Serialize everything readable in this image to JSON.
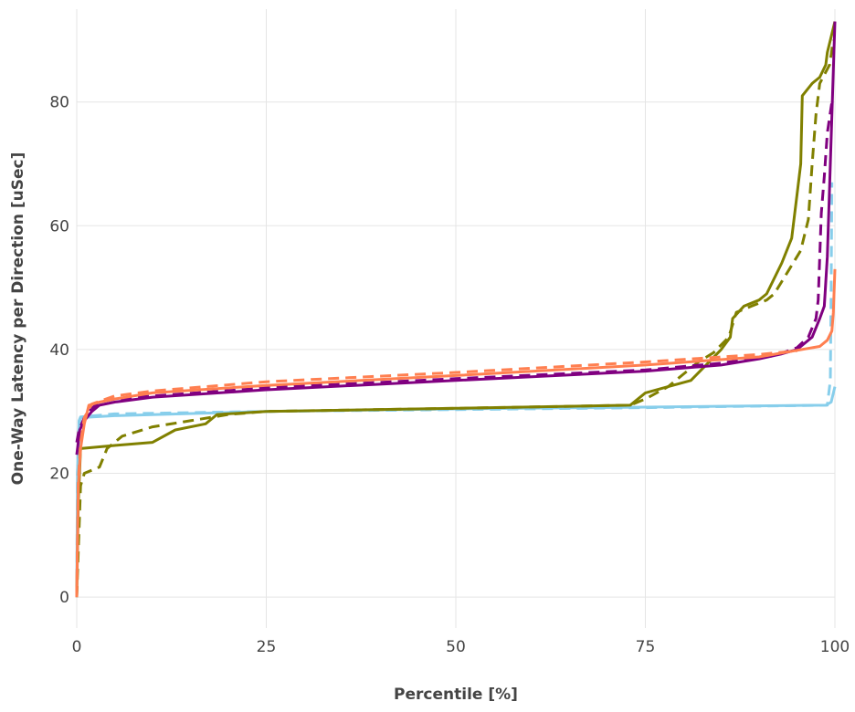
{
  "chart_data": {
    "type": "line",
    "title": "",
    "xlabel": "Percentile [%]",
    "ylabel": "One-Way Latency per Direction [uSec]",
    "xlim": [
      0,
      100
    ],
    "ylim": [
      -5,
      95
    ],
    "xticks": [
      0,
      25,
      50,
      75,
      100
    ],
    "yticks": [
      0,
      20,
      40,
      60,
      80
    ],
    "grid": true,
    "legend": "none",
    "series": [
      {
        "color": "#87ceeb",
        "dash": "solid",
        "points": [
          [
            0,
            0
          ],
          [
            0.1,
            20
          ],
          [
            0.3,
            28
          ],
          [
            0.5,
            29
          ],
          [
            5,
            29.3
          ],
          [
            25,
            30
          ],
          [
            50,
            30.4
          ],
          [
            75,
            30.7
          ],
          [
            98.8,
            31
          ],
          [
            99.5,
            31.5
          ],
          [
            100,
            34
          ]
        ]
      },
      {
        "color": "#87ceeb",
        "dash": "dashed",
        "points": [
          [
            0,
            0
          ],
          [
            0.1,
            20
          ],
          [
            0.3,
            28.5
          ],
          [
            0.5,
            29.1
          ],
          [
            5,
            29.6
          ],
          [
            25,
            30
          ],
          [
            50,
            30.3
          ],
          [
            75,
            30.6
          ],
          [
            99,
            31
          ],
          [
            99.4,
            35
          ],
          [
            99.5,
            50
          ],
          [
            99.6,
            67
          ]
        ]
      },
      {
        "color": "#808000",
        "dash": "solid",
        "points": [
          [
            0,
            0
          ],
          [
            0.2,
            15
          ],
          [
            0.5,
            24
          ],
          [
            5,
            24.5
          ],
          [
            10,
            25
          ],
          [
            13,
            27
          ],
          [
            17,
            28
          ],
          [
            18.5,
            29.5
          ],
          [
            25,
            30
          ],
          [
            50,
            30.5
          ],
          [
            73,
            31
          ],
          [
            75,
            33
          ],
          [
            78,
            34
          ],
          [
            81,
            35
          ],
          [
            83,
            37.5
          ],
          [
            85,
            40
          ],
          [
            86.2,
            42
          ],
          [
            86.5,
            45
          ],
          [
            88,
            47
          ],
          [
            90,
            48
          ],
          [
            91,
            49
          ],
          [
            93,
            54
          ],
          [
            94.3,
            58
          ],
          [
            95,
            65
          ],
          [
            95.5,
            70
          ],
          [
            95.7,
            81
          ],
          [
            97,
            83
          ],
          [
            98,
            84
          ],
          [
            98.8,
            86
          ],
          [
            99,
            88
          ],
          [
            100,
            93
          ]
        ]
      },
      {
        "color": "#808000",
        "dash": "dashed",
        "points": [
          [
            0,
            0
          ],
          [
            0.5,
            18
          ],
          [
            1,
            20
          ],
          [
            3,
            21
          ],
          [
            4,
            24
          ],
          [
            6,
            26
          ],
          [
            10,
            27.5
          ],
          [
            15,
            28.5
          ],
          [
            20,
            29.5
          ],
          [
            25,
            30
          ],
          [
            50,
            30.5
          ],
          [
            73,
            31
          ],
          [
            75,
            32
          ],
          [
            78,
            34
          ],
          [
            80,
            36
          ],
          [
            82,
            38
          ],
          [
            84,
            39.5
          ],
          [
            86,
            42
          ],
          [
            87,
            46
          ],
          [
            89,
            47
          ],
          [
            91,
            48
          ],
          [
            92,
            49
          ],
          [
            94,
            53
          ],
          [
            95.5,
            56
          ],
          [
            96.5,
            61
          ],
          [
            97,
            70
          ],
          [
            97.5,
            78
          ],
          [
            98,
            83
          ],
          [
            99.3,
            86
          ],
          [
            99.8,
            90
          ]
        ]
      },
      {
        "color": "#800080",
        "dash": "solid",
        "points": [
          [
            0,
            23
          ],
          [
            0.2,
            25
          ],
          [
            0.4,
            27
          ],
          [
            1,
            28.5
          ],
          [
            2,
            30
          ],
          [
            3,
            31
          ],
          [
            5,
            31.5
          ],
          [
            10,
            32.3
          ],
          [
            25,
            33.5
          ],
          [
            50,
            35
          ],
          [
            75,
            36.5
          ],
          [
            85,
            37.5
          ],
          [
            90,
            38.5
          ],
          [
            93,
            39.3
          ],
          [
            95,
            40
          ],
          [
            97,
            42
          ],
          [
            98,
            45
          ],
          [
            98.6,
            47
          ],
          [
            99,
            55
          ],
          [
            99.4,
            70
          ],
          [
            100,
            93
          ]
        ]
      },
      {
        "color": "#800080",
        "dash": "dashed",
        "points": [
          [
            0,
            25
          ],
          [
            0.3,
            27
          ],
          [
            1,
            29
          ],
          [
            2,
            30.5
          ],
          [
            3,
            31.5
          ],
          [
            5,
            32
          ],
          [
            10,
            32.5
          ],
          [
            25,
            33.8
          ],
          [
            50,
            35.3
          ],
          [
            75,
            36.7
          ],
          [
            85,
            37.8
          ],
          [
            92,
            39
          ],
          [
            95,
            40.3
          ],
          [
            96.5,
            42
          ],
          [
            97.5,
            45
          ],
          [
            97.8,
            48
          ],
          [
            98,
            55
          ],
          [
            98.2,
            62
          ],
          [
            98.6,
            68
          ],
          [
            99,
            75
          ],
          [
            99.6,
            80
          ]
        ]
      },
      {
        "color": "#ff7f50",
        "dash": "solid",
        "points": [
          [
            0,
            0
          ],
          [
            0.2,
            18
          ],
          [
            0.5,
            24
          ],
          [
            1,
            28
          ],
          [
            1.6,
            31
          ],
          [
            3,
            31.5
          ],
          [
            5,
            32
          ],
          [
            10,
            33
          ],
          [
            25,
            34.2
          ],
          [
            50,
            35.8
          ],
          [
            75,
            37.5
          ],
          [
            90,
            38.8
          ],
          [
            98,
            40.5
          ],
          [
            99,
            41.5
          ],
          [
            99.6,
            43
          ],
          [
            99.8,
            46
          ],
          [
            100,
            53
          ]
        ]
      },
      {
        "color": "#ff7f50",
        "dash": "dashed",
        "points": [
          [
            0,
            0
          ],
          [
            0.2,
            19
          ],
          [
            0.5,
            25
          ],
          [
            1,
            29
          ],
          [
            2,
            31.2
          ],
          [
            5,
            32.5
          ],
          [
            10,
            33.3
          ],
          [
            25,
            34.8
          ],
          [
            50,
            36.3
          ],
          [
            75,
            38
          ],
          [
            90,
            39.2
          ],
          [
            95,
            39.8
          ]
        ]
      }
    ]
  }
}
